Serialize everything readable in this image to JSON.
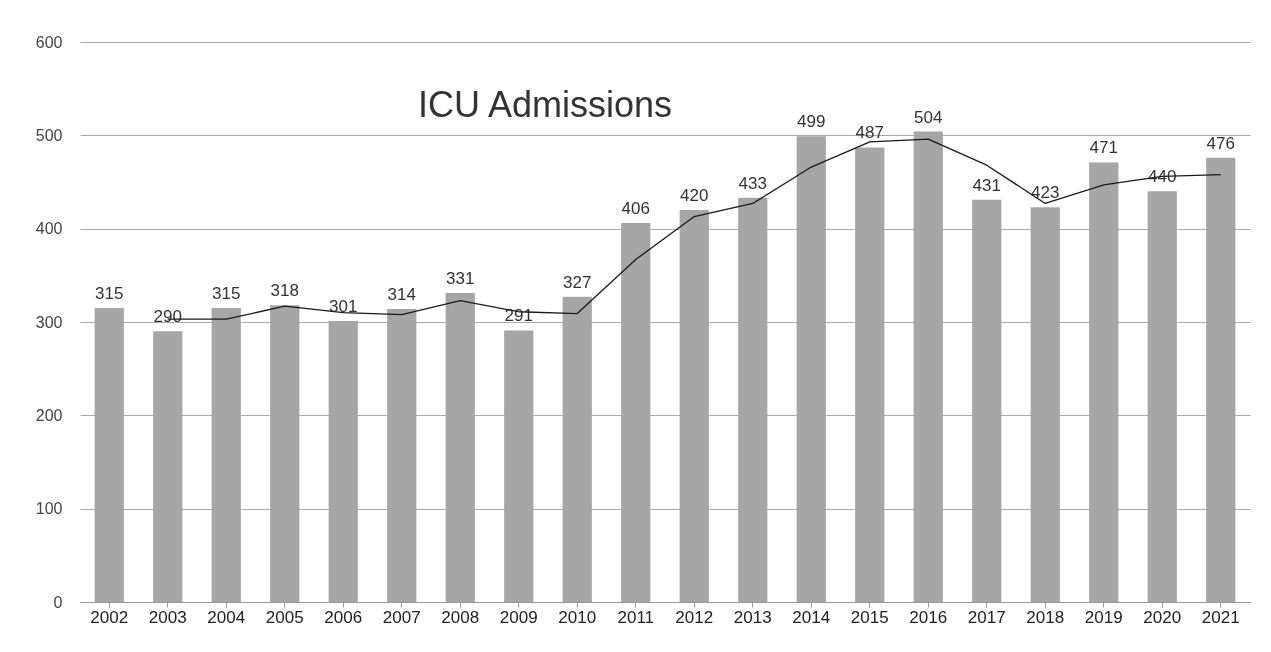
{
  "chart_data": {
    "type": "bar",
    "title": "ICU Admissions",
    "categories": [
      "2002",
      "2003",
      "2004",
      "2005",
      "2006",
      "2007",
      "2008",
      "2009",
      "2010",
      "2011",
      "2012",
      "2013",
      "2014",
      "2015",
      "2016",
      "2017",
      "2018",
      "2019",
      "2020",
      "2021"
    ],
    "series": [
      {
        "color": "#a6a6a6",
        "data_labels": true,
        "values": [
          315,
          290,
          315,
          318,
          301,
          314,
          331,
          291,
          327,
          406,
          420,
          433,
          499,
          487,
          504,
          431,
          423,
          471,
          440,
          476
        ]
      },
      {
        "type": "line",
        "color": "#1a1a1a",
        "values": [
          null,
          303,
          303,
          317,
          310,
          308,
          323,
          311,
          309,
          367,
          413,
          427,
          466,
          493,
          496,
          468,
          427,
          447,
          456,
          458
        ]
      }
    ],
    "ylim": [
      0,
      600
    ],
    "yticks": [
      0,
      100,
      200,
      300,
      400,
      500,
      600
    ],
    "grid": "y"
  }
}
